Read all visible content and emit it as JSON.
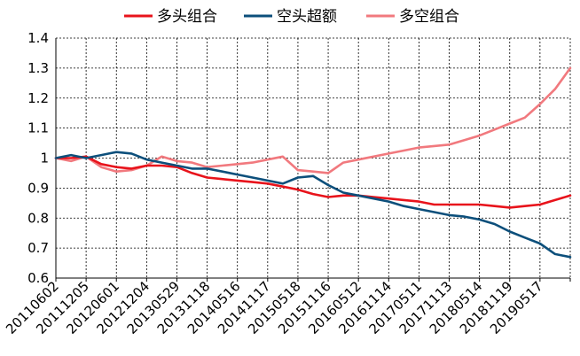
{
  "chart_data": {
    "type": "line",
    "title": "",
    "xlabel": "",
    "ylabel": "",
    "ylim": [
      0.6,
      1.4
    ],
    "yticks": [
      0.6,
      0.7,
      0.8,
      0.9,
      1,
      1.1,
      1.2,
      1.3,
      1.4
    ],
    "ytick_labels": [
      "0.6",
      "0.7",
      "0.8",
      "0.9",
      "1",
      "1.1",
      "1.2",
      "1.3",
      "1.4"
    ],
    "xtick_labels": [
      "20110602",
      "20111205",
      "20120601",
      "20121204",
      "20130529",
      "20131118",
      "20140516",
      "20141117",
      "20150518",
      "20151116",
      "20160512",
      "20161114",
      "20170511",
      "20171113",
      "20180514",
      "20181119",
      "20190517"
    ],
    "grid": true,
    "legend_position": "top",
    "colors": {
      "long": "#e8131b",
      "short_excess": "#0c4f7b",
      "long_short": "#f1797e"
    },
    "x": [
      0,
      0.5,
      1,
      1.5,
      2,
      2.5,
      3,
      3.5,
      4,
      4.5,
      5,
      5.5,
      6,
      6.5,
      7,
      7.5,
      8,
      8.5,
      9,
      9.5,
      10,
      10.5,
      11,
      11.5,
      12,
      12.5,
      13,
      13.5,
      14,
      14.5,
      15,
      15.5,
      16,
      16.5,
      17
    ],
    "series": [
      {
        "name": "多头组合",
        "values": [
          1.0,
          1.0,
          1.005,
          0.98,
          0.97,
          0.965,
          0.975,
          0.975,
          0.97,
          0.95,
          0.935,
          0.93,
          0.925,
          0.92,
          0.915,
          0.905,
          0.895,
          0.88,
          0.87,
          0.875,
          0.875,
          0.87,
          0.865,
          0.86,
          0.855,
          0.845,
          0.845,
          0.845,
          0.845,
          0.84,
          0.835,
          0.84,
          0.845,
          0.86,
          0.875
        ]
      },
      {
        "name": "空头超额",
        "values": [
          1.0,
          1.01,
          1.0,
          1.01,
          1.02,
          1.015,
          0.995,
          0.985,
          0.975,
          0.965,
          0.965,
          0.955,
          0.945,
          0.935,
          0.925,
          0.915,
          0.935,
          0.94,
          0.91,
          0.885,
          0.875,
          0.865,
          0.855,
          0.84,
          0.83,
          0.82,
          0.81,
          0.805,
          0.795,
          0.78,
          0.755,
          0.735,
          0.715,
          0.68,
          0.67
        ]
      },
      {
        "name": "多空组合",
        "values": [
          1.0,
          0.99,
          1.005,
          0.97,
          0.955,
          0.96,
          0.975,
          1.005,
          0.99,
          0.985,
          0.97,
          0.975,
          0.98,
          0.985,
          0.995,
          1.005,
          0.96,
          0.955,
          0.95,
          0.985,
          0.995,
          1.005,
          1.015,
          1.025,
          1.035,
          1.04,
          1.045,
          1.06,
          1.075,
          1.095,
          1.115,
          1.135,
          1.18,
          1.23,
          1.3
        ]
      }
    ]
  }
}
